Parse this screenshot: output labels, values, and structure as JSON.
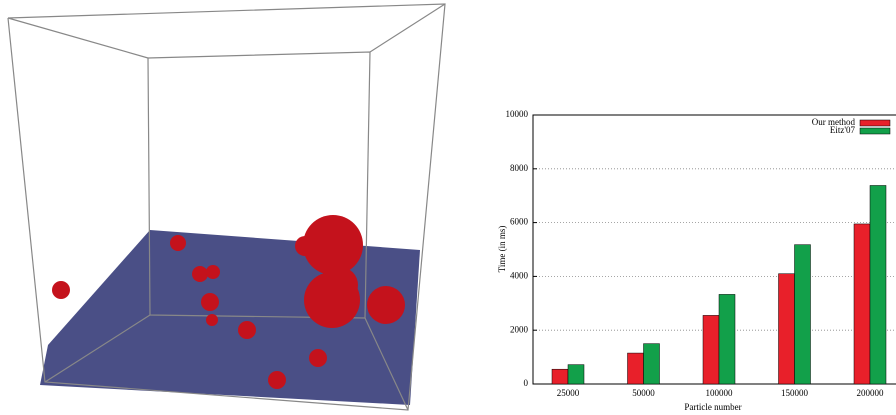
{
  "chart_data": {
    "type": "bar",
    "xlabel": "Particle number",
    "ylabel": "Time (in ms)",
    "categories": [
      "25000",
      "50000",
      "100000",
      "150000",
      "200000"
    ],
    "series": [
      {
        "name": "Our method",
        "color": "#e8202a",
        "values": [
          550,
          1150,
          2550,
          4100,
          5950
        ]
      },
      {
        "name": "Eitz'07",
        "color": "#12a04a",
        "values": [
          720,
          1500,
          3330,
          5180,
          7380
        ]
      }
    ],
    "ylim": [
      0,
      10000
    ],
    "yticks": [
      0,
      2000,
      4000,
      6000,
      8000,
      10000
    ],
    "grid": true,
    "legend": "top-right"
  }
}
